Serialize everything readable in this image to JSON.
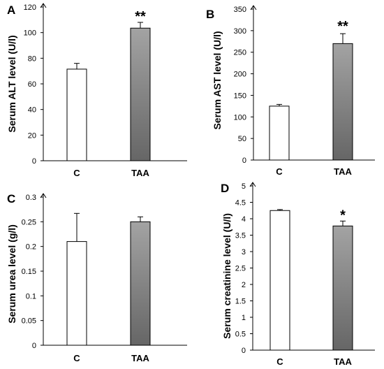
{
  "chart_data": [
    {
      "id": "A",
      "type": "bar",
      "panel_label": "A",
      "ylabel": "Serum ALT level (U/l)",
      "categories": [
        "C",
        "TAA"
      ],
      "values": [
        71.5,
        103.5
      ],
      "errors": [
        4.5,
        4.5
      ],
      "significance": [
        "",
        "**"
      ],
      "bar_styles": [
        "white",
        "gradient"
      ],
      "ylim": [
        0,
        120
      ],
      "yticks": [
        0,
        20,
        40,
        60,
        80,
        100,
        120
      ],
      "ytick_labels": [
        "0",
        "20",
        "40",
        "60",
        "80",
        "100",
        "120"
      ]
    },
    {
      "id": "B",
      "type": "bar",
      "panel_label": "B",
      "ylabel": "Serum AST level (U/l)",
      "categories": [
        "C",
        "TAA"
      ],
      "values": [
        125,
        270
      ],
      "errors": [
        4,
        23
      ],
      "significance": [
        "",
        "**"
      ],
      "bar_styles": [
        "white",
        "gradient"
      ],
      "ylim": [
        0,
        350
      ],
      "yticks": [
        0,
        50,
        100,
        150,
        200,
        250,
        300,
        350
      ],
      "ytick_labels": [
        "0",
        "50",
        "100",
        "150",
        "200",
        "250",
        "300",
        "350"
      ]
    },
    {
      "id": "C",
      "type": "bar",
      "panel_label": "C",
      "ylabel": "Serum urea level (g/l)",
      "categories": [
        "C",
        "TAA"
      ],
      "values": [
        0.21,
        0.25
      ],
      "errors": [
        0.057,
        0.01
      ],
      "significance": [
        "",
        ""
      ],
      "bar_styles": [
        "white",
        "gradient"
      ],
      "ylim": [
        0,
        0.3
      ],
      "yticks": [
        0,
        0.05,
        0.1,
        0.15,
        0.2,
        0.25,
        0.3
      ],
      "ytick_labels": [
        "0",
        "0.05",
        "0.1",
        "0.15",
        "0.2",
        "0.25",
        "0.3"
      ]
    },
    {
      "id": "D",
      "type": "bar",
      "panel_label": "D",
      "ylabel": "Serum creatinine level (U/l)",
      "categories": [
        "C",
        "TAA"
      ],
      "values": [
        4.25,
        3.78
      ],
      "errors": [
        0.03,
        0.15
      ],
      "significance": [
        "",
        "*"
      ],
      "bar_styles": [
        "white",
        "gradient"
      ],
      "ylim": [
        0,
        5
      ],
      "yticks": [
        0,
        0.5,
        1,
        1.5,
        2,
        2.5,
        3,
        3.5,
        4,
        4.5,
        5
      ],
      "ytick_labels": [
        "0",
        "0.5",
        "1",
        "1.5",
        "2",
        "2.5",
        "3",
        "3.5",
        "4",
        "4.5",
        "5"
      ]
    }
  ]
}
